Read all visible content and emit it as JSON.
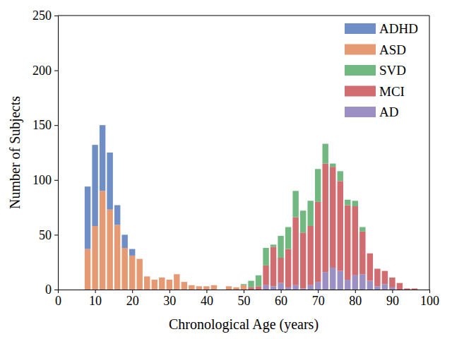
{
  "chart_data": {
    "type": "bar",
    "stacked": true,
    "x_label": "Chronological Age (years)",
    "y_label": "Number of Subjects",
    "x": [
      8,
      10,
      12,
      14,
      16,
      18,
      20,
      22,
      24,
      26,
      28,
      30,
      32,
      34,
      36,
      38,
      40,
      42,
      44,
      46,
      48,
      50,
      52,
      54,
      56,
      58,
      60,
      62,
      64,
      66,
      68,
      70,
      72,
      74,
      76,
      78,
      80,
      82,
      84,
      86,
      88,
      90,
      92,
      94,
      96
    ],
    "series": [
      {
        "name": "ADHD",
        "color": "#6e8ec5",
        "values": [
          57,
          74,
          60,
          52,
          18,
          12,
          6,
          0,
          0,
          0,
          0,
          0,
          0,
          0,
          0,
          0,
          0,
          0,
          0,
          0,
          0,
          0,
          0,
          0,
          0,
          0,
          0,
          0,
          0,
          0,
          0,
          0,
          0,
          0,
          0,
          0,
          0,
          0,
          0,
          0,
          0,
          0,
          0,
          0,
          0
        ]
      },
      {
        "name": "ASD",
        "color": "#e69a74",
        "values": [
          37,
          58,
          90,
          73,
          59,
          38,
          31,
          28,
          12,
          9,
          11,
          9,
          14,
          7,
          4,
          3,
          3,
          4,
          0,
          3,
          2,
          4,
          0,
          0,
          0,
          0,
          0,
          0,
          0,
          0,
          0,
          0,
          0,
          0,
          0,
          0,
          0,
          0,
          0,
          0,
          0,
          0,
          0,
          0,
          0
        ]
      },
      {
        "name": "SVD",
        "color": "#72b881",
        "values": [
          0,
          0,
          0,
          0,
          0,
          0,
          0,
          0,
          0,
          0,
          0,
          0,
          0,
          0,
          0,
          0,
          0,
          0,
          0,
          0,
          0,
          1,
          6,
          10,
          16,
          2,
          20,
          20,
          24,
          20,
          23,
          30,
          18,
          3,
          9,
          5,
          5,
          4,
          0,
          0,
          0,
          0,
          0,
          0,
          0
        ]
      },
      {
        "name": "MCI",
        "color": "#d16d70",
        "values": [
          0,
          0,
          0,
          0,
          0,
          0,
          0,
          0,
          0,
          0,
          0,
          0,
          0,
          0,
          0,
          0,
          0,
          0,
          0,
          0,
          0,
          0,
          2,
          3,
          18,
          36,
          23,
          35,
          62,
          51,
          54,
          73,
          99,
          92,
          82,
          68,
          63,
          39,
          25,
          16,
          12,
          9,
          6,
          1,
          1
        ]
      },
      {
        "name": "AD",
        "color": "#9b8fc4",
        "values": [
          0,
          0,
          0,
          0,
          0,
          0,
          0,
          0,
          0,
          0,
          0,
          0,
          0,
          0,
          0,
          0,
          0,
          0,
          0,
          0,
          0,
          0,
          0,
          0,
          4,
          3,
          6,
          2,
          4,
          1,
          4,
          7,
          16,
          20,
          17,
          9,
          13,
          14,
          8,
          3,
          5,
          2,
          0,
          0,
          0
        ]
      }
    ],
    "xlim": [
      0,
      100
    ],
    "xticks": [
      0,
      10,
      20,
      30,
      40,
      50,
      60,
      70,
      80,
      90,
      100
    ],
    "ylim": [
      0,
      250
    ],
    "yticks": [
      0,
      50,
      100,
      150,
      200,
      250
    ],
    "legend": "upper right",
    "grid": false
  }
}
